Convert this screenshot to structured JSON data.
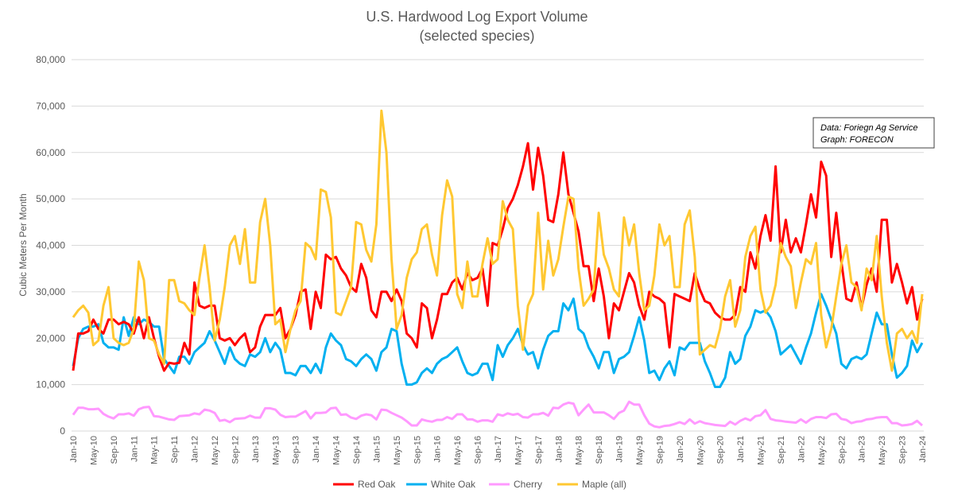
{
  "chart_data": {
    "type": "line",
    "title": "U.S. Hardwood Log Export Volume",
    "subtitle": "(selected species)",
    "ylabel": "Cubic Meters Per Month",
    "xlabel": "",
    "x_start": "Jan-10",
    "x_end": "Jan-24",
    "x_interval": "monthly",
    "x_tick_labels": [
      "Jan-10",
      "May-10",
      "Sep-10",
      "Jan-11",
      "May-11",
      "Sep-11",
      "Jan-12",
      "May-12",
      "Sep-12",
      "Jan-13",
      "May-13",
      "Sep-13",
      "Jan-14",
      "May-14",
      "Sep-14",
      "Jan-15",
      "May-15",
      "Sep-15",
      "Jan-16",
      "May-16",
      "Sep-16",
      "Jan-17",
      "May-17",
      "Sep-17",
      "Jan-18",
      "May-18",
      "Sep-18",
      "Jan-19",
      "May-19",
      "Sep-19",
      "Jan-20",
      "May-20",
      "Sep-20",
      "Jan-21",
      "May-21",
      "Sep-21",
      "Jan-22",
      "May-22",
      "Sep-22",
      "Jan-23",
      "May-23",
      "Sep-23",
      "Jan-24"
    ],
    "y_tick_labels": [
      "0",
      "10,000",
      "20,000",
      "30,000",
      "40,000",
      "50,000",
      "60,000",
      "70,000",
      "80,000"
    ],
    "ylim": [
      0,
      80000
    ],
    "grid": "horizontal",
    "legend_position": "bottom",
    "annotation": [
      "Data: Foriegn Ag Service",
      "Graph: FORECON"
    ],
    "unit_multiplier": 1000,
    "series": [
      {
        "name": "Red Oak",
        "color": "#FF0000",
        "values": [
          13,
          21,
          21,
          21.5,
          24,
          22,
          21,
          24,
          24,
          23,
          23.5,
          23,
          21,
          24.5,
          20,
          24.5,
          20,
          16,
          13,
          14.7,
          14.5,
          14.7,
          19,
          16.5,
          32,
          27,
          26.5,
          27,
          27,
          20,
          19.5,
          20,
          18.5,
          20,
          21,
          17,
          18,
          22.5,
          25,
          25,
          25,
          26.5,
          20,
          22,
          25,
          30,
          30.5,
          22,
          30,
          26.5,
          38,
          37,
          37.5,
          35,
          33.5,
          31,
          30,
          36,
          33,
          26,
          24.5,
          30,
          30,
          28,
          30.5,
          28,
          21,
          20,
          18,
          27.5,
          26.5,
          20,
          24,
          29.5,
          29.5,
          32,
          33,
          30.5,
          34,
          32.5,
          33,
          35,
          27,
          40.5,
          40,
          43.5,
          48,
          50,
          53,
          57,
          62,
          52,
          61,
          55,
          45.5,
          45,
          51,
          60,
          51,
          47,
          43,
          35.5,
          35.5,
          28,
          35,
          29,
          20,
          27.5,
          26,
          30,
          34,
          32,
          27,
          24,
          30,
          29,
          28.5,
          27.5,
          18,
          29.5,
          29,
          28.5,
          28,
          34,
          30.5,
          28,
          27.5,
          25.5,
          24.5,
          24,
          24,
          25,
          31,
          30,
          38.5,
          35,
          42,
          46.5,
          41,
          57,
          38.5,
          45.5,
          38.5,
          41.5,
          38.5,
          44.5,
          51,
          46,
          58,
          55,
          37.5,
          47,
          36.5,
          28.5,
          28,
          32,
          26.5,
          31.5,
          35,
          30,
          45.5,
          45.5,
          32,
          36,
          32,
          27.5,
          31,
          24,
          28.5
        ]
      },
      {
        "name": "White Oak",
        "color": "#00B0F0",
        "values": [
          14,
          20,
          22,
          22.5,
          22.5,
          23,
          19,
          18,
          18,
          17.5,
          24.5,
          20.5,
          24.5,
          23,
          24,
          23.5,
          22.5,
          22.5,
          15.5,
          14,
          12.5,
          16,
          16,
          14.5,
          17,
          18,
          19,
          21.5,
          19.5,
          17,
          14.5,
          18,
          15.5,
          14.5,
          14,
          16.5,
          16,
          17,
          20,
          17,
          19,
          17.5,
          12.5,
          12.5,
          12,
          14,
          14,
          12.5,
          14.5,
          12.5,
          18,
          21,
          19.5,
          18.5,
          15.5,
          15,
          14,
          15.5,
          16.5,
          15.5,
          13,
          17,
          18,
          22,
          21.5,
          14.5,
          10,
          10,
          10.5,
          12.5,
          13.5,
          12.5,
          14.5,
          15.5,
          16,
          17,
          18,
          15,
          12.5,
          12,
          12.5,
          14.5,
          14.5,
          11,
          18.5,
          16,
          18.5,
          20,
          22,
          18.5,
          16.5,
          17,
          13.5,
          17.5,
          20.5,
          21.5,
          21.5,
          27.5,
          26,
          28.5,
          22,
          21,
          18,
          16,
          13.5,
          17,
          17,
          12.5,
          15.5,
          16,
          17,
          20.5,
          24.5,
          19.5,
          12.5,
          13,
          11,
          13.5,
          15,
          12,
          18,
          17.5,
          19,
          19,
          19,
          15,
          12.5,
          9.5,
          9.5,
          11.5,
          17,
          14.5,
          15.5,
          20.5,
          22.5,
          26,
          25.5,
          26,
          24.5,
          21.5,
          16.5,
          17.5,
          18.5,
          16.5,
          14.5,
          18,
          21,
          25.5,
          29.5,
          27,
          24,
          21,
          14.5,
          13.5,
          15.5,
          16,
          15.5,
          16.5,
          21,
          25.5,
          23,
          23,
          16.5,
          11.5,
          12.5,
          14,
          19.5,
          17,
          19
        ]
      },
      {
        "name": "Cherry",
        "color": "#FF99FF",
        "values": [
          3.5,
          5,
          5,
          4.7,
          4.7,
          4.8,
          3.7,
          3.1,
          2.7,
          3.6,
          3.6,
          3.8,
          3.3,
          4.7,
          5.1,
          5.2,
          3.2,
          3.1,
          2.8,
          2.5,
          2.4,
          3.2,
          3.3,
          3.4,
          3.8,
          3.6,
          4.6,
          4.4,
          3.9,
          2.2,
          2.4,
          1.9,
          2.6,
          2.7,
          2.8,
          3.3,
          2.9,
          2.9,
          4.9,
          4.9,
          4.6,
          3.5,
          3.0,
          3.1,
          3.1,
          3.7,
          4.3,
          2.7,
          3.9,
          3.9,
          4.0,
          4.9,
          5.0,
          3.5,
          3.6,
          2.9,
          2.6,
          3.3,
          3.6,
          3.4,
          2.5,
          4.6,
          4.5,
          3.9,
          3.4,
          2.9,
          2.1,
          1.2,
          1.2,
          2.5,
          2.2,
          2.0,
          2.4,
          2.4,
          3.0,
          2.6,
          3.6,
          3.6,
          2.5,
          2.5,
          2.0,
          2.3,
          2.3,
          2.0,
          3.6,
          3.3,
          3.8,
          3.5,
          3.7,
          3.0,
          2.9,
          3.6,
          3.6,
          3.9,
          3.3,
          5.0,
          4.9,
          5.7,
          6.1,
          5.9,
          3.4,
          4.6,
          5.7,
          4.0,
          4.0,
          4.0,
          3.4,
          2.6,
          3.9,
          4.4,
          6.3,
          5.7,
          5.7,
          3.4,
          1.6,
          1.0,
          0.8,
          1.1,
          1.2,
          1.5,
          1.9,
          1.5,
          2.5,
          1.6,
          2.1,
          1.7,
          1.5,
          1.3,
          1.2,
          1.1,
          2.0,
          1.4,
          2.2,
          2.7,
          2.3,
          3.2,
          3.4,
          4.5,
          2.6,
          2.3,
          2.2,
          2.0,
          1.9,
          1.8,
          2.5,
          1.8,
          2.6,
          3.0,
          3.0,
          2.8,
          3.6,
          3.7,
          2.6,
          2.4,
          1.7,
          2.0,
          2.1,
          2.5,
          2.6,
          2.9,
          3.0,
          3.0,
          1.7,
          1.7,
          1.2,
          1.3,
          1.5,
          2.2,
          1.2
        ]
      },
      {
        "name": "Maple (all)",
        "color": "#FFC832",
        "values": [
          24.5,
          26,
          27,
          25.5,
          18.5,
          19.5,
          27,
          31,
          20,
          19,
          18.5,
          19,
          22,
          36.5,
          32.5,
          20,
          19.5,
          16.5,
          14.5,
          32.5,
          32.5,
          28,
          27.5,
          26,
          25,
          33,
          40,
          31,
          19.5,
          24,
          31,
          40,
          42,
          36,
          43.5,
          32,
          32,
          45,
          50,
          40,
          23,
          24,
          17,
          22,
          26,
          28,
          40.5,
          39.5,
          37,
          52,
          51.5,
          46,
          25.5,
          25,
          28,
          31,
          45,
          44.5,
          39,
          36.5,
          44.5,
          69,
          60,
          37,
          22,
          25,
          33,
          37,
          38.5,
          43.5,
          44.5,
          38,
          33.5,
          46.5,
          54,
          50.5,
          29.5,
          26.5,
          36.5,
          29,
          29,
          36,
          41.5,
          36,
          37,
          49.5,
          45.5,
          43.5,
          27,
          17.5,
          27,
          29.5,
          47,
          30.5,
          41,
          33.5,
          37,
          44,
          50.5,
          50,
          35,
          27,
          28.5,
          30.5,
          47,
          38,
          35,
          30.5,
          29,
          46,
          40,
          44.5,
          34,
          26,
          27,
          33.5,
          44.5,
          40,
          42,
          31,
          31,
          44.5,
          47.5,
          37.5,
          16.5,
          17.5,
          18.5,
          18,
          22,
          29,
          32.5,
          22.5,
          26,
          37.5,
          42,
          44,
          30.5,
          25.5,
          27,
          31.5,
          40.5,
          37.5,
          35.5,
          26.5,
          32,
          37,
          36,
          40.5,
          25,
          18,
          22,
          29,
          36,
          40,
          32,
          31,
          26,
          35,
          32.5,
          42,
          29,
          19,
          13,
          21,
          22,
          20,
          21.5,
          19,
          29.5
        ]
      }
    ]
  }
}
